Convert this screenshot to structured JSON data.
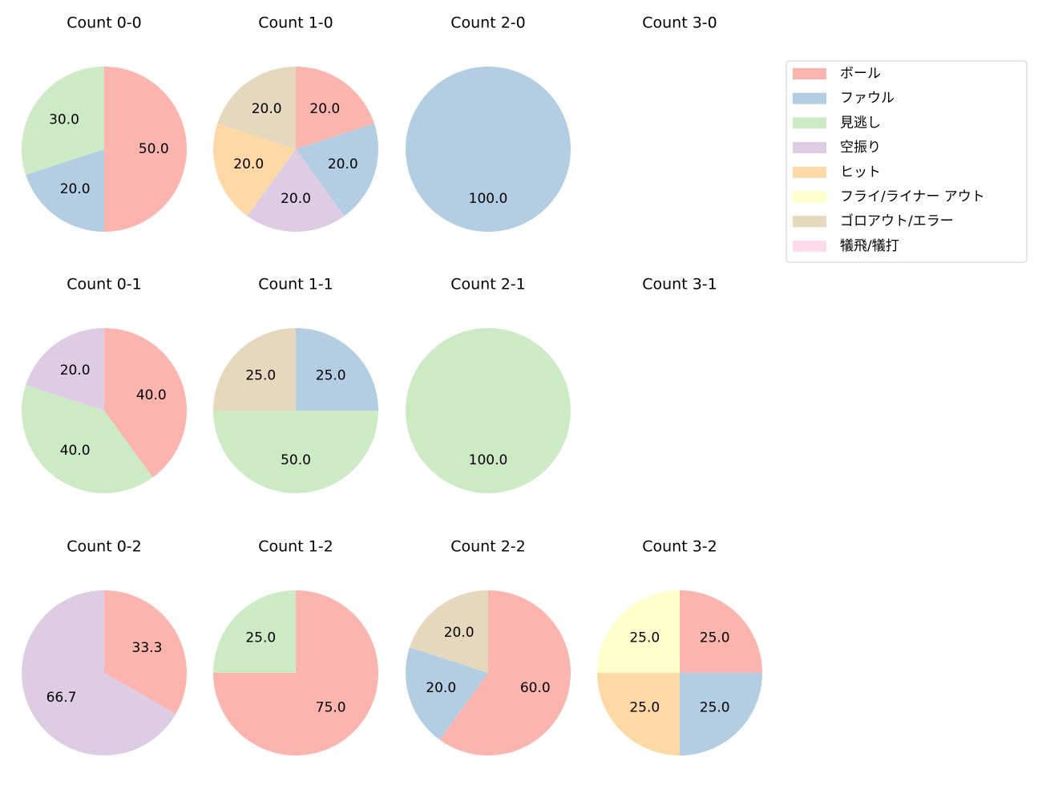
{
  "chart_data": [
    {
      "type": "pie",
      "title": "Count 0-0",
      "values": [
        50,
        20,
        30
      ],
      "value_labels": [
        "50.0",
        "20.0",
        "30.0"
      ],
      "colors": [
        "#fbb4ae",
        "#b3cde3",
        "#ccebc5"
      ]
    },
    {
      "type": "pie",
      "title": "Count 1-0",
      "values": [
        20,
        20,
        20,
        20,
        20
      ],
      "value_labels": [
        "20.0",
        "20.0",
        "20.0",
        "20.0",
        "20.0"
      ],
      "colors": [
        "#fbb4ae",
        "#b3cde3",
        "#decbe4",
        "#fed9a6",
        "#e5d8bd"
      ]
    },
    {
      "type": "pie",
      "title": "Count 2-0",
      "values": [
        100
      ],
      "value_labels": [
        "100.0"
      ],
      "colors": [
        "#b3cde3"
      ]
    },
    {
      "type": "pie",
      "title": "Count 3-0",
      "values": [],
      "value_labels": [],
      "colors": []
    },
    {
      "type": "pie",
      "title": "Count 0-1",
      "values": [
        40,
        40,
        20
      ],
      "value_labels": [
        "40.0",
        "40.0",
        "20.0"
      ],
      "colors": [
        "#fbb4ae",
        "#ccebc5",
        "#decbe4"
      ]
    },
    {
      "type": "pie",
      "title": "Count 1-1",
      "values": [
        25,
        50,
        25
      ],
      "value_labels": [
        "25.0",
        "50.0",
        "25.0"
      ],
      "colors": [
        "#b3cde3",
        "#ccebc5",
        "#e5d8bd"
      ]
    },
    {
      "type": "pie",
      "title": "Count 2-1",
      "values": [
        100
      ],
      "value_labels": [
        "100.0"
      ],
      "colors": [
        "#ccebc5"
      ]
    },
    {
      "type": "pie",
      "title": "Count 3-1",
      "values": [],
      "value_labels": [],
      "colors": []
    },
    {
      "type": "pie",
      "title": "Count 0-2",
      "values": [
        33.3,
        66.7
      ],
      "value_labels": [
        "33.3",
        "66.7"
      ],
      "colors": [
        "#fbb4ae",
        "#decbe4"
      ]
    },
    {
      "type": "pie",
      "title": "Count 1-2",
      "values": [
        75,
        25
      ],
      "value_labels": [
        "75.0",
        "25.0"
      ],
      "colors": [
        "#fbb4ae",
        "#ccebc5"
      ]
    },
    {
      "type": "pie",
      "title": "Count 2-2",
      "values": [
        60,
        20,
        20
      ],
      "value_labels": [
        "60.0",
        "20.0",
        "20.0"
      ],
      "colors": [
        "#fbb4ae",
        "#b3cde3",
        "#e5d8bd"
      ]
    },
    {
      "type": "pie",
      "title": "Count 3-2",
      "values": [
        25,
        25,
        25,
        25
      ],
      "value_labels": [
        "25.0",
        "25.0",
        "25.0",
        "25.0"
      ],
      "colors": [
        "#fbb4ae",
        "#b3cde3",
        "#fed9a6",
        "#ffffcc"
      ]
    }
  ],
  "legend": [
    {
      "name": "ボール",
      "color": "#fbb4ae"
    },
    {
      "name": "ファウル",
      "color": "#b3cde3"
    },
    {
      "name": "見逃し",
      "color": "#ccebc5"
    },
    {
      "name": "空振り",
      "color": "#decbe4"
    },
    {
      "name": "ヒット",
      "color": "#fed9a6"
    },
    {
      "name": "フライ/ライナー アウト",
      "color": "#ffffcc"
    },
    {
      "name": "ゴロアウト/エラー",
      "color": "#e5d8bd"
    },
    {
      "name": "犠飛/犠打",
      "color": "#fddaec"
    }
  ]
}
